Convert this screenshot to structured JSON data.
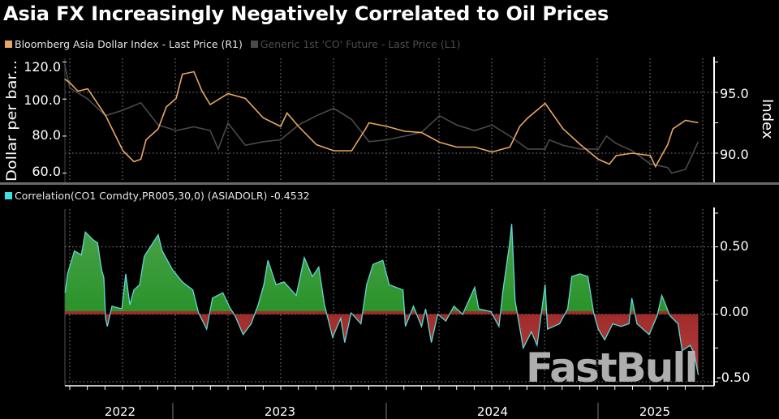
{
  "title": "Asia FX Increasingly Negatively Correlated to Oil Prices",
  "watermark": "FastBull",
  "colors": {
    "index": "#e8a862",
    "oil": "#4a4a4a",
    "correlation": "#5fd8d6",
    "positive_fill": "#1d8a1d",
    "negative_fill": "#a01515"
  },
  "chart_data": [
    {
      "type": "line",
      "legend": [
        {
          "label": "Bloomberg Asia Dollar Index - Last Price (R1)",
          "color": "#e8a862"
        },
        {
          "label": "Generic 1st 'CO' Future - Last Price (L1)",
          "color": "#4a4a4a"
        }
      ],
      "legend_placement": "top-left",
      "y_left": {
        "label": "Dollar per bar...",
        "ticks": [
          "120.0",
          "100.0",
          "80.0",
          "60.0"
        ],
        "range": [
          55,
          122
        ]
      },
      "y_right": {
        "label": "Index",
        "ticks": [
          "95.0",
          "90.0"
        ],
        "range": [
          87.6,
          97.8
        ]
      },
      "grid": true,
      "series": [
        {
          "name": "Bloomberg Asia Dollar Index - Last Price (R1)",
          "axis": "right",
          "points": [
            [
              "2022-06-22",
              96.1
            ],
            [
              "2022-07-01",
              95.8
            ],
            [
              "2022-07-15",
              95.1
            ],
            [
              "2022-08-01",
              95.3
            ],
            [
              "2022-09-01",
              93.1
            ],
            [
              "2022-10-01",
              90.2
            ],
            [
              "2022-10-20",
              89.3
            ],
            [
              "2022-11-01",
              89.5
            ],
            [
              "2022-11-10",
              91.1
            ],
            [
              "2022-12-01",
              92.0
            ],
            [
              "2022-12-15",
              93.8
            ],
            [
              "2023-01-01",
              94.5
            ],
            [
              "2023-01-12",
              96.5
            ],
            [
              "2023-02-01",
              96.7
            ],
            [
              "2023-02-15",
              95.1
            ],
            [
              "2023-03-01",
              94.0
            ],
            [
              "2023-04-01",
              94.9
            ],
            [
              "2023-05-01",
              94.5
            ],
            [
              "2023-06-01",
              92.9
            ],
            [
              "2023-07-01",
              92.2
            ],
            [
              "2023-07-12",
              93.3
            ],
            [
              "2023-08-01",
              92.2
            ],
            [
              "2023-09-01",
              90.7
            ],
            [
              "2023-10-01",
              90.2
            ],
            [
              "2023-11-01",
              90.2
            ],
            [
              "2023-11-25",
              92.0
            ],
            [
              "2023-12-01",
              92.5
            ],
            [
              "2024-01-01",
              92.2
            ],
            [
              "2024-02-01",
              91.8
            ],
            [
              "2024-03-01",
              91.7
            ],
            [
              "2024-04-01",
              90.9
            ],
            [
              "2024-05-01",
              90.5
            ],
            [
              "2024-06-01",
              90.5
            ],
            [
              "2024-07-01",
              90.1
            ],
            [
              "2024-08-01",
              90.5
            ],
            [
              "2024-08-18",
              92.2
            ],
            [
              "2024-09-01",
              92.9
            ],
            [
              "2024-10-01",
              94.1
            ],
            [
              "2024-11-01",
              92.0
            ],
            [
              "2024-12-01",
              90.7
            ],
            [
              "2025-01-01",
              89.5
            ],
            [
              "2025-01-20",
              89.1
            ],
            [
              "2025-02-01",
              89.8
            ],
            [
              "2025-03-01",
              90.0
            ],
            [
              "2025-04-01",
              89.8
            ],
            [
              "2025-04-10",
              88.9
            ],
            [
              "2025-05-01",
              90.7
            ],
            [
              "2025-05-10",
              92.0
            ],
            [
              "2025-06-01",
              92.7
            ],
            [
              "2025-06-23",
              92.5
            ]
          ]
        },
        {
          "name": "Generic 1st 'CO' Future - Last Price (L1)",
          "axis": "left",
          "points": [
            [
              "2022-06-22",
              119
            ],
            [
              "2022-07-01",
              106
            ],
            [
              "2022-08-01",
              100
            ],
            [
              "2022-09-01",
              91
            ],
            [
              "2022-10-01",
              94
            ],
            [
              "2022-11-01",
              98
            ],
            [
              "2022-12-01",
              86
            ],
            [
              "2023-01-01",
              83
            ],
            [
              "2023-02-01",
              85
            ],
            [
              "2023-03-01",
              83
            ],
            [
              "2023-03-15",
              73
            ],
            [
              "2023-04-01",
              87
            ],
            [
              "2023-05-01",
              75
            ],
            [
              "2023-06-01",
              77
            ],
            [
              "2023-07-01",
              78
            ],
            [
              "2023-08-01",
              86
            ],
            [
              "2023-09-01",
              91
            ],
            [
              "2023-10-01",
              95
            ],
            [
              "2023-11-01",
              89
            ],
            [
              "2023-12-01",
              77
            ],
            [
              "2024-01-01",
              78
            ],
            [
              "2024-02-01",
              80
            ],
            [
              "2024-03-01",
              82
            ],
            [
              "2024-04-01",
              91
            ],
            [
              "2024-05-01",
              86
            ],
            [
              "2024-06-01",
              83
            ],
            [
              "2024-07-01",
              86
            ],
            [
              "2024-08-01",
              80
            ],
            [
              "2024-09-01",
              73
            ],
            [
              "2024-10-01",
              73
            ],
            [
              "2024-10-08",
              78
            ],
            [
              "2024-11-01",
              75
            ],
            [
              "2024-12-01",
              73
            ],
            [
              "2025-01-01",
              73
            ],
            [
              "2025-01-15",
              80
            ],
            [
              "2025-02-01",
              76
            ],
            [
              "2025-03-01",
              72
            ],
            [
              "2025-04-01",
              65
            ],
            [
              "2025-05-01",
              63
            ],
            [
              "2025-05-08",
              60
            ],
            [
              "2025-06-01",
              62
            ],
            [
              "2025-06-23",
              77
            ]
          ]
        }
      ]
    },
    {
      "type": "area",
      "legend": [
        {
          "label": "Correlation(CO1 Comdty,PR005,30,0) (ASIADOLR) -0.4532",
          "color": "#5fd8d6"
        }
      ],
      "y_right": {
        "ticks": [
          "0.50",
          "0.00",
          "-0.50"
        ],
        "range": [
          -0.53,
          0.78
        ]
      },
      "x_ticks": [
        "2022",
        "2023",
        "2024",
        "2025"
      ],
      "grid": true,
      "series": [
        {
          "name": "Correlation(CO1 Comdty,PR005,30,0) (ASIADOLR)",
          "points": [
            [
              "2022-06-23",
              0.16
            ],
            [
              "2022-06-27",
              0.3
            ],
            [
              "2022-07-09",
              0.47
            ],
            [
              "2022-07-21",
              0.44
            ],
            [
              "2022-07-28",
              0.61
            ],
            [
              "2022-08-11",
              0.55
            ],
            [
              "2022-08-18",
              0.53
            ],
            [
              "2022-08-25",
              0.33
            ],
            [
              "2022-08-29",
              0.27
            ],
            [
              "2022-09-01",
              -0.03
            ],
            [
              "2022-09-04",
              -0.09
            ],
            [
              "2022-09-12",
              0.06
            ],
            [
              "2022-09-29",
              0.04
            ],
            [
              "2022-10-06",
              0.3
            ],
            [
              "2022-10-13",
              0.07
            ],
            [
              "2022-10-20",
              0.18
            ],
            [
              "2022-10-30",
              0.22
            ],
            [
              "2022-11-07",
              0.43
            ],
            [
              "2022-12-01",
              0.59
            ],
            [
              "2022-12-08",
              0.47
            ],
            [
              "2022-12-26",
              0.33
            ],
            [
              "2023-01-12",
              0.24
            ],
            [
              "2023-01-30",
              0.18
            ],
            [
              "2023-02-09",
              0.01
            ],
            [
              "2023-02-23",
              -0.11
            ],
            [
              "2023-03-05",
              0.12
            ],
            [
              "2023-03-23",
              0.16
            ],
            [
              "2023-04-04",
              0.05
            ],
            [
              "2023-04-13",
              -0.01
            ],
            [
              "2023-04-27",
              -0.15
            ],
            [
              "2023-05-11",
              -0.07
            ],
            [
              "2023-05-23",
              0.07
            ],
            [
              "2023-06-02",
              0.22
            ],
            [
              "2023-06-09",
              0.4
            ],
            [
              "2023-06-23",
              0.22
            ],
            [
              "2023-07-07",
              0.24
            ],
            [
              "2023-07-28",
              0.14
            ],
            [
              "2023-08-11",
              0.42
            ],
            [
              "2023-08-25",
              0.28
            ],
            [
              "2023-09-05",
              0.35
            ],
            [
              "2023-09-15",
              0.07
            ],
            [
              "2023-09-29",
              -0.17
            ],
            [
              "2023-10-13",
              -0.03
            ],
            [
              "2023-10-20",
              -0.21
            ],
            [
              "2023-10-31",
              0.01
            ],
            [
              "2023-11-17",
              -0.07
            ],
            [
              "2023-11-27",
              0.22
            ],
            [
              "2023-12-08",
              0.37
            ],
            [
              "2023-12-25",
              0.4
            ],
            [
              "2024-01-05",
              0.22
            ],
            [
              "2024-01-29",
              0.18
            ],
            [
              "2024-02-02",
              -0.09
            ],
            [
              "2024-02-16",
              0.06
            ],
            [
              "2024-03-01",
              -0.09
            ],
            [
              "2024-03-08",
              0.04
            ],
            [
              "2024-03-18",
              -0.21
            ],
            [
              "2024-03-29",
              0.0
            ],
            [
              "2024-04-12",
              -0.05
            ],
            [
              "2024-04-26",
              0.06
            ],
            [
              "2024-05-11",
              0.0
            ],
            [
              "2024-06-01",
              0.2
            ],
            [
              "2024-06-08",
              0.04
            ],
            [
              "2024-06-29",
              0.02
            ],
            [
              "2024-07-13",
              -0.09
            ],
            [
              "2024-07-20",
              0.18
            ],
            [
              "2024-07-31",
              0.51
            ],
            [
              "2024-08-04",
              0.67
            ],
            [
              "2024-08-10",
              0.1
            ],
            [
              "2024-08-24",
              -0.25
            ],
            [
              "2024-09-07",
              -0.13
            ],
            [
              "2024-09-17",
              -0.23
            ],
            [
              "2024-10-01",
              0.22
            ],
            [
              "2024-10-05",
              -0.11
            ],
            [
              "2024-10-26",
              -0.07
            ],
            [
              "2024-11-09",
              0.04
            ],
            [
              "2024-11-16",
              0.28
            ],
            [
              "2024-11-30",
              0.3
            ],
            [
              "2024-12-14",
              0.28
            ],
            [
              "2024-12-24",
              0.01
            ],
            [
              "2025-01-01",
              -0.11
            ],
            [
              "2025-01-12",
              -0.19
            ],
            [
              "2025-01-26",
              -0.07
            ],
            [
              "2025-02-09",
              -0.09
            ],
            [
              "2025-02-23",
              -0.07
            ],
            [
              "2025-02-28",
              0.12
            ],
            [
              "2025-03-09",
              -0.07
            ],
            [
              "2025-03-30",
              -0.15
            ],
            [
              "2025-04-13",
              -0.01
            ],
            [
              "2025-04-21",
              0.14
            ],
            [
              "2025-05-05",
              -0.01
            ],
            [
              "2025-05-19",
              -0.07
            ],
            [
              "2025-05-26",
              -0.27
            ],
            [
              "2025-06-09",
              -0.23
            ],
            [
              "2025-06-16",
              -0.29
            ],
            [
              "2025-06-23",
              -0.45
            ]
          ]
        }
      ]
    }
  ]
}
